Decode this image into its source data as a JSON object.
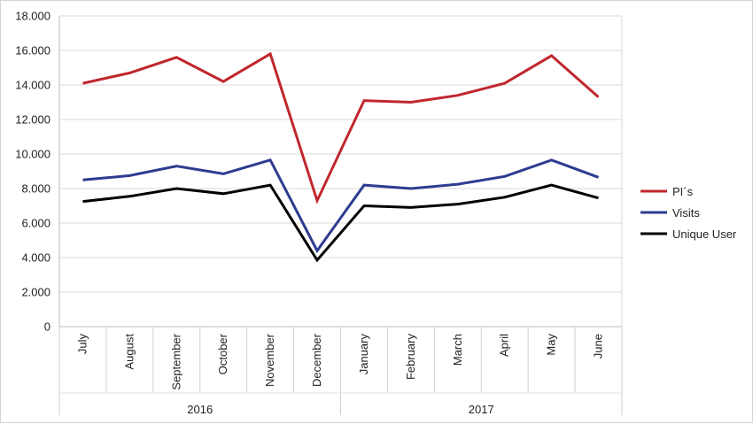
{
  "chart_data": {
    "type": "line",
    "categories": [
      "July",
      "August",
      "September",
      "October",
      "November",
      "December",
      "January",
      "February",
      "March",
      "April",
      "May",
      "June"
    ],
    "groups": [
      {
        "label": "2016",
        "count": 6
      },
      {
        "label": "2017",
        "count": 6
      }
    ],
    "series": [
      {
        "name": "PI´s",
        "color": "#c0272d",
        "values": [
          14100,
          14700,
          15600,
          14200,
          15800,
          7300,
          13100,
          13000,
          13400,
          14100,
          15700,
          13300
        ]
      },
      {
        "name": "Visits",
        "color": "#2e3c8f",
        "values": [
          8500,
          8750,
          9300,
          8850,
          9650,
          4400,
          8200,
          8000,
          8250,
          8700,
          9650,
          8650
        ]
      },
      {
        "name": "Unique User",
        "color": "#000000",
        "values": [
          7250,
          7550,
          8000,
          7700,
          8200,
          3850,
          7000,
          6900,
          7100,
          7500,
          8200,
          7450
        ]
      }
    ],
    "ylim": [
      0,
      18000
    ],
    "yticks": [
      "0",
      "2.000",
      "4.000",
      "6.000",
      "8.000",
      "10.000",
      "12.000",
      "14.000",
      "16.000",
      "18.000"
    ],
    "grid": true,
    "legend": "right",
    "title": "",
    "xlabel": "",
    "ylabel": ""
  }
}
